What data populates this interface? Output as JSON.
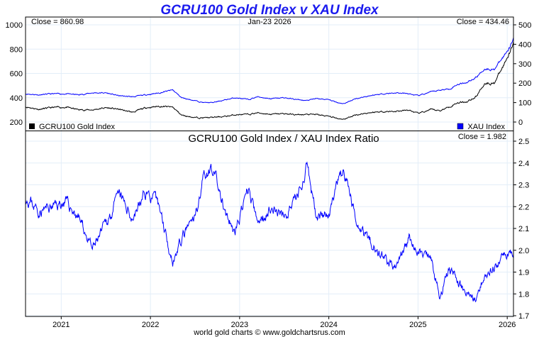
{
  "chart_data": [
    {
      "type": "line",
      "title": "GCRU100 Gold Index v XAU Index",
      "date_label": "Jan-23  2026",
      "left_close": "Close = 860.98",
      "right_close": "Close = 434.46",
      "left_axis": {
        "ticks": [
          "200",
          "400",
          "600",
          "800",
          "1000"
        ],
        "range": [
          160,
          1040
        ]
      },
      "right_axis": {
        "ticks": [
          "0",
          "100",
          "200",
          "300",
          "400",
          "500"
        ],
        "range": [
          -20,
          520
        ]
      },
      "legend": [
        {
          "name": "GCRU100 Gold Index",
          "color": "#000000",
          "position": "bottom-left"
        },
        {
          "name": "XAU Index",
          "color": "#0000ff",
          "position": "bottom-right"
        }
      ],
      "x": [
        2020.6,
        2020.75,
        2020.9,
        2021.05,
        2021.2,
        2021.35,
        2021.5,
        2021.65,
        2021.8,
        2021.95,
        2022.1,
        2022.25,
        2022.35,
        2022.5,
        2022.6,
        2022.7,
        2022.85,
        2022.95,
        2023.1,
        2023.2,
        2023.35,
        2023.5,
        2023.65,
        2023.75,
        2023.85,
        2024.0,
        2024.1,
        2024.17,
        2024.3,
        2024.45,
        2024.6,
        2024.75,
        2024.9,
        2025.0,
        2025.15,
        2025.25,
        2025.35,
        2025.45,
        2025.55,
        2025.65,
        2025.75,
        2025.85,
        2025.95,
        2026.03,
        2026.07
      ],
      "series": [
        {
          "name": "GCRU100 Gold Index",
          "axis": "left",
          "values": [
            326,
            305,
            319,
            322,
            301,
            300,
            318,
            304,
            280,
            318,
            330,
            322,
            256,
            237,
            235,
            238,
            247,
            260,
            262,
            276,
            264,
            269,
            259,
            262,
            262,
            247,
            230,
            224,
            258,
            277,
            286,
            288,
            297,
            270,
            302,
            294,
            326,
            361,
            369,
            409,
            523,
            518,
            650,
            784,
            860.98
          ]
        },
        {
          "name": "XAU Index",
          "axis": "right",
          "values": [
            145,
            140,
            145,
            145,
            140,
            150,
            150,
            135,
            130,
            140,
            150,
            165,
            125,
            110,
            100,
            100,
            115,
            125,
            115,
            130,
            120,
            125,
            115,
            110,
            120,
            115,
            100,
            95,
            120,
            135,
            145,
            150,
            145,
            135,
            155,
            165,
            170,
            195,
            205,
            230,
            275,
            270,
            330,
            390,
            434.46
          ]
        }
      ]
    },
    {
      "type": "line",
      "title": "GCRU100 Gold Index  /  XAU Index Ratio",
      "close": "Close = 1.982",
      "right_axis": {
        "ticks": [
          "1.7",
          "1.8",
          "1.9",
          "2.0",
          "2.1",
          "2.2",
          "2.3",
          "2.4",
          "2.5"
        ],
        "range": [
          1.7,
          2.5
        ]
      },
      "x_ticks": [
        "2021",
        "2022",
        "2023",
        "2024",
        "2025",
        "2026"
      ],
      "x_range": [
        2020.6,
        2026.07
      ],
      "series": [
        {
          "name": "Ratio",
          "color": "#0000ff",
          "values": [
            2.25,
            2.18,
            2.2,
            2.22,
            2.15,
            2.0,
            2.12,
            2.25,
            2.15,
            2.27,
            2.2,
            1.95,
            2.05,
            2.15,
            2.35,
            2.38,
            2.15,
            2.08,
            2.28,
            2.12,
            2.2,
            2.15,
            2.25,
            2.38,
            2.18,
            2.15,
            2.3,
            2.36,
            2.15,
            2.05,
            1.97,
            1.92,
            2.05,
            2.0,
            1.95,
            1.78,
            1.92,
            1.85,
            1.8,
            1.78,
            1.9,
            1.92,
            1.97,
            2.01,
            1.982
          ]
        }
      ],
      "footer": "world gold charts © www.goldchartsrus.com"
    }
  ]
}
